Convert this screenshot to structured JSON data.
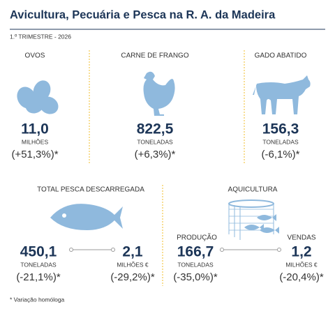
{
  "header": {
    "title": "Avicultura, Pecuária e Pesca na R. A. da Madeira",
    "subtitle": "1.º TRIMESTRE - 2026"
  },
  "top": [
    {
      "label": "OVOS",
      "value": "11,0",
      "unit": "MILHÕES",
      "change": "(+51,3%)*"
    },
    {
      "label": "CARNE DE FRANGO",
      "value": "822,5",
      "unit": "TONELADAS",
      "change": "(+6,3%)*"
    },
    {
      "label": "GADO ABATIDO",
      "value": "156,3",
      "unit": "TONELADAS",
      "change": "(-6,1%)*"
    }
  ],
  "fishing": {
    "label": "TOTAL PESCA DESCARREGADA",
    "left": {
      "value": "450,1",
      "unit": "TONELADAS",
      "change": "(-21,1%)*"
    },
    "right": {
      "value": "2,1",
      "unit": "MILHÕES €",
      "change": "(-29,2%)*"
    }
  },
  "aquaculture": {
    "label": "AQUICULTURA",
    "left": {
      "label": "PRODUÇÃO",
      "value": "166,7",
      "unit": "TONELADAS",
      "change": "(-35,0%)*"
    },
    "right": {
      "label": "VENDAS",
      "value": "1,2",
      "unit": "MILHÕES €",
      "change": "(-20,4%)*"
    }
  },
  "footnote": "* Variação homóloga"
}
